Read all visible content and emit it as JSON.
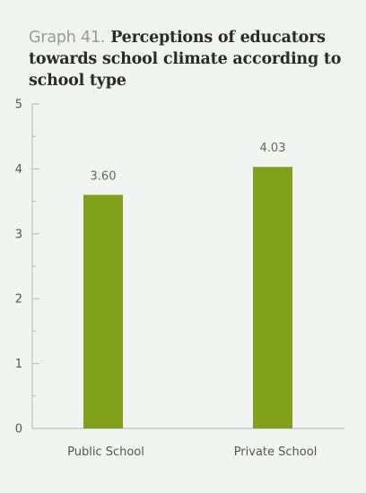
{
  "header": {
    "graph_number": "Graph 41.",
    "title_text": "Perceptions of educators towards school climate according to school type"
  },
  "colors": {
    "bar": "#82a11a",
    "axis": "#b5b5b5",
    "background": "#f2f4f2"
  },
  "chart_data": {
    "type": "bar",
    "title": "Perceptions of educators towards school climate according to school type",
    "categories": [
      "Public School",
      "Private School"
    ],
    "values": [
      3.6,
      4.03
    ],
    "value_labels": [
      "3.60",
      "4.03"
    ],
    "xlabel": "",
    "ylabel": "",
    "ylim": [
      0,
      5
    ],
    "yticks": [
      0,
      1,
      2,
      3,
      4,
      5
    ],
    "minor_ticks": true,
    "grid": false,
    "legend": "none"
  }
}
